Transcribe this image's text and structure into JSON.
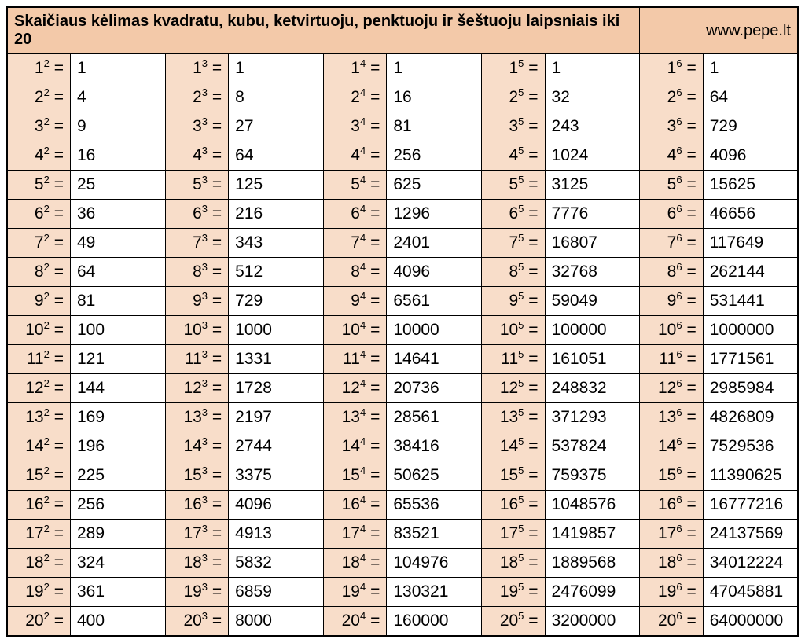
{
  "title": "Skaičiaus kėlimas kvadratu, kubu, ketvirtuoju, penktuoju ir šeštuoju laipsniais iki 20",
  "site": "www.pepe.lt",
  "headerBg": "#f3c9a9",
  "labelBg": "#f8ddc9",
  "valueBg": "#ffffff",
  "borderColor": "#000000",
  "textColor": "#000000",
  "fontSize": 21,
  "headerFontSize": 20,
  "exponents": [
    2,
    3,
    4,
    5,
    6
  ],
  "colWidthsPercent": {
    "label": 8.0,
    "value": 12.0
  },
  "rows": [
    {
      "base": 1,
      "vals": [
        "1",
        "1",
        "1",
        "1",
        "1"
      ]
    },
    {
      "base": 2,
      "vals": [
        "4",
        "8",
        "16",
        "32",
        "64"
      ]
    },
    {
      "base": 3,
      "vals": [
        "9",
        "27",
        "81",
        "243",
        "729"
      ]
    },
    {
      "base": 4,
      "vals": [
        "16",
        "64",
        "256",
        "1024",
        "4096"
      ]
    },
    {
      "base": 5,
      "vals": [
        "25",
        "125",
        "625",
        "3125",
        "15625"
      ]
    },
    {
      "base": 6,
      "vals": [
        "36",
        "216",
        "1296",
        "7776",
        "46656"
      ]
    },
    {
      "base": 7,
      "vals": [
        "49",
        "343",
        "2401",
        "16807",
        "117649"
      ]
    },
    {
      "base": 8,
      "vals": [
        "64",
        "512",
        "4096",
        "32768",
        "262144"
      ]
    },
    {
      "base": 9,
      "vals": [
        "81",
        "729",
        "6561",
        "59049",
        "531441"
      ]
    },
    {
      "base": 10,
      "vals": [
        "100",
        "1000",
        "10000",
        "100000",
        "1000000"
      ]
    },
    {
      "base": 11,
      "vals": [
        "121",
        "1331",
        "14641",
        "161051",
        "1771561"
      ]
    },
    {
      "base": 12,
      "vals": [
        "144",
        "1728",
        "20736",
        "248832",
        "2985984"
      ]
    },
    {
      "base": 13,
      "vals": [
        "169",
        "2197",
        "28561",
        "371293",
        "4826809"
      ]
    },
    {
      "base": 14,
      "vals": [
        "196",
        "2744",
        "38416",
        "537824",
        "7529536"
      ]
    },
    {
      "base": 15,
      "vals": [
        "225",
        "3375",
        "50625",
        "759375",
        "11390625"
      ]
    },
    {
      "base": 16,
      "vals": [
        "256",
        "4096",
        "65536",
        "1048576",
        "16777216"
      ]
    },
    {
      "base": 17,
      "vals": [
        "289",
        "4913",
        "83521",
        "1419857",
        "24137569"
      ]
    },
    {
      "base": 18,
      "vals": [
        "324",
        "5832",
        "104976",
        "1889568",
        "34012224"
      ]
    },
    {
      "base": 19,
      "vals": [
        "361",
        "6859",
        "130321",
        "2476099",
        "47045881"
      ]
    },
    {
      "base": 20,
      "vals": [
        "400",
        "8000",
        "160000",
        "3200000",
        "64000000"
      ]
    }
  ]
}
